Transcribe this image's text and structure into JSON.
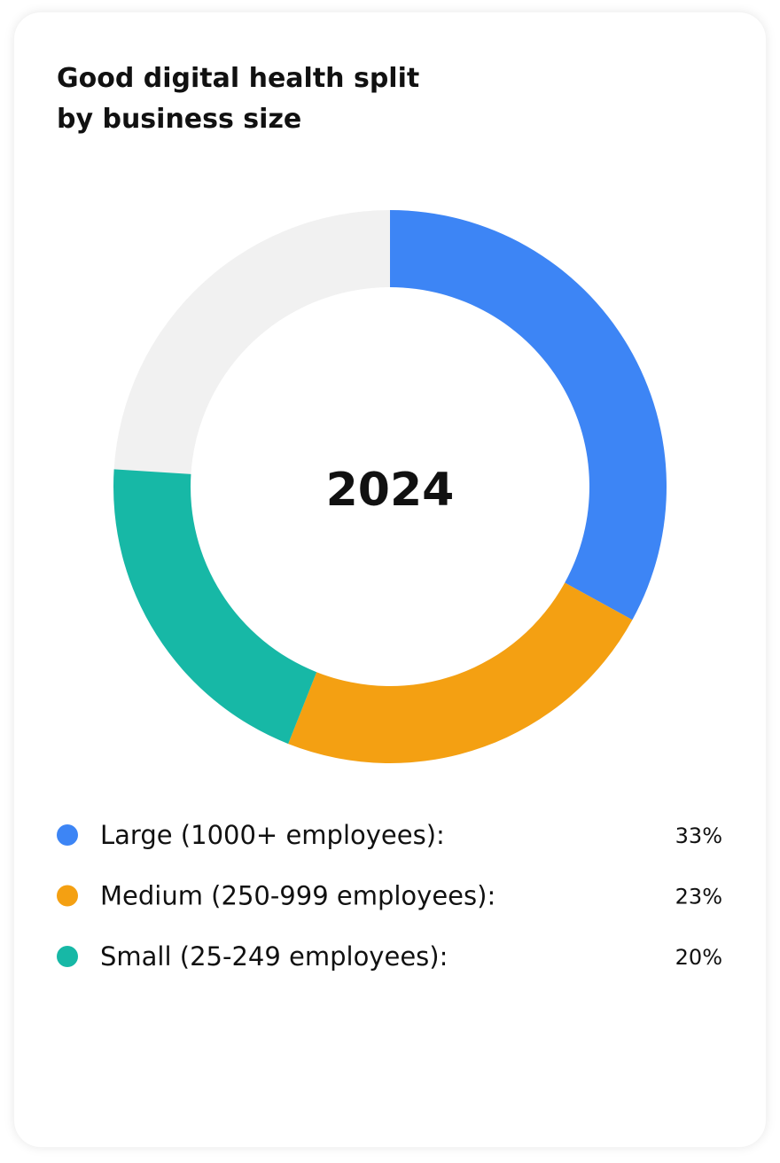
{
  "chart_data": {
    "type": "donut",
    "title": "Good digital health split by business size",
    "center_label": "2024",
    "categories": [
      "Large (1000+ employees):",
      "Medium (250-999 employees):",
      "Small (25-249 employees):"
    ],
    "values": [
      33,
      23,
      20
    ],
    "value_labels": [
      "33%",
      "23%",
      "20%"
    ],
    "colors": [
      "#3d85f5",
      "#f4a012",
      "#17b8a6"
    ],
    "track_color": "#f1f1f1"
  }
}
